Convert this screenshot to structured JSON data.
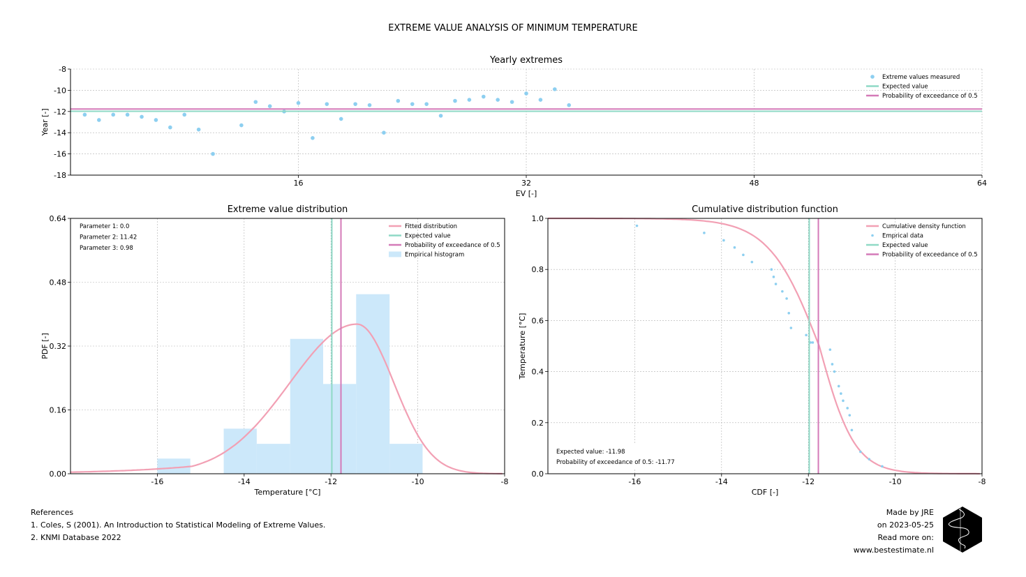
{
  "page": {
    "title": "EXTREME VALUE ANALYSIS OF MINIMUM TEMPERATURE",
    "references": {
      "heading": "References",
      "items": [
        "1. Coles, S (2001). An Introduction to Statistical Modeling of Extreme Values.",
        "2. KNMI Database 2022"
      ]
    },
    "credits": {
      "made_by": "Made by JRE",
      "date": "on 2023-05-25",
      "read_more": "Read more on:",
      "url": "www.bestestimate.nl"
    }
  },
  "colors": {
    "scatter": "#8dcff0",
    "expected": "#8fd9c6",
    "exceedance": "#d47ab8",
    "fit": "#f2a0b4",
    "hist": "#cce8fa",
    "grid": "#b0b0b0"
  },
  "chart_data": [
    {
      "id": "yearly",
      "type": "scatter",
      "title": "Yearly extremes",
      "xlabel": "EV [-]",
      "ylabel": "Year [-]",
      "xlim": [
        0,
        64
      ],
      "ylim": [
        -18,
        -8
      ],
      "xticks": [
        16,
        32,
        48,
        64
      ],
      "yticks": [
        -8,
        -10,
        -12,
        -14,
        -16,
        -18
      ],
      "grid": true,
      "legend_position": "top-right",
      "legend": [
        "Extreme values measured",
        "Expected value",
        "Probability of exceedance of 0.5"
      ],
      "series": [
        {
          "name": "Extreme values measured",
          "x": [
            1,
            2,
            3,
            4,
            5,
            6,
            7,
            8,
            9,
            10,
            12,
            13,
            14,
            15,
            16,
            17,
            18,
            19,
            20,
            21,
            22,
            23,
            24,
            25,
            26,
            27,
            28,
            29,
            30,
            31,
            32,
            33,
            34,
            35
          ],
          "y": [
            -12.3,
            -12.8,
            -12.3,
            -12.3,
            -12.5,
            -12.8,
            -13.5,
            -12.3,
            -13.7,
            -16.0,
            -13.3,
            -11.1,
            -11.5,
            -12.0,
            -11.2,
            -14.5,
            -11.3,
            -12.7,
            -11.3,
            -11.4,
            -14.0,
            -11.0,
            -11.3,
            -11.3,
            -12.4,
            -11.0,
            -10.9,
            -10.6,
            -10.9,
            -11.1,
            -10.3,
            -10.9,
            -9.9,
            -11.4
          ]
        },
        {
          "name": "Expected value",
          "y": -11.98
        },
        {
          "name": "Probability of exceedance of 0.5",
          "y": -11.77
        }
      ]
    },
    {
      "id": "pdf",
      "type": "line",
      "title": "Extreme value distribution",
      "xlabel": "Temperature [°C]",
      "ylabel": "PDF [-]",
      "xlim": [
        -18,
        -8
      ],
      "ylim": [
        0,
        0.64
      ],
      "xticks": [
        -16,
        -14,
        -12,
        -10,
        -8
      ],
      "yticks": [
        0.0,
        0.16,
        0.32,
        0.48,
        0.64
      ],
      "grid": true,
      "legend_position": "top-right",
      "legend": [
        "Fitted distribution",
        "Expected value",
        "Probability of exceedance of 0.5",
        "Empirical histogram"
      ],
      "annotations": [
        "Parameter 1: 0.0",
        "Parameter 2: 11.42",
        "Parameter 3: 0.98"
      ],
      "histogram": {
        "edges": [
          -16.0,
          -15.24,
          -14.47,
          -13.71,
          -12.94,
          -12.18,
          -11.42,
          -10.65,
          -9.89
        ],
        "values": [
          0.038,
          0.0,
          0.113,
          0.075,
          0.338,
          0.225,
          0.45,
          0.075
        ]
      },
      "fit": {
        "name": "Fitted distribution",
        "distribution": "reversed Weibull",
        "loc": 0.0,
        "scale": 11.42,
        "shape": 0.98
      },
      "vlines": [
        {
          "name": "Expected value",
          "x": -11.98
        },
        {
          "name": "Probability of exceedance of 0.5",
          "x": -11.77
        }
      ]
    },
    {
      "id": "cdf",
      "type": "line",
      "title": "Cumulative distribution function",
      "xlabel": "CDF [-]",
      "ylabel": "Temperature [°C]",
      "xlim": [
        -18,
        -8
      ],
      "ylim": [
        0,
        1.0
      ],
      "xticks": [
        -16,
        -14,
        -12,
        -10,
        -8
      ],
      "yticks": [
        0.0,
        0.2,
        0.4,
        0.6,
        0.8,
        1.0
      ],
      "grid": true,
      "legend_position": "top-right",
      "legend": [
        "Cumulative density function",
        "Emprical data",
        "Expected value",
        "Probability of exceedance of 0.5"
      ],
      "annotations": [
        "Expected value: -11.98",
        "Probability of exceedance of 0.5: -11.77"
      ],
      "empirical": {
        "x": [
          -15.95,
          -14.4,
          -13.95,
          -13.7,
          -13.5,
          -13.3,
          -12.85,
          -12.8,
          -12.75,
          -12.6,
          -12.5,
          -12.45,
          -12.4,
          -12.05,
          -11.95,
          -11.9,
          -11.5,
          -11.45,
          -11.4,
          -11.3,
          -11.25,
          -11.2,
          -11.1,
          -11.05,
          -11.0,
          -10.8,
          -10.6,
          -10.3
        ],
        "y": [
          0.971,
          0.943,
          0.914,
          0.886,
          0.857,
          0.829,
          0.8,
          0.771,
          0.743,
          0.714,
          0.686,
          0.629,
          0.571,
          0.543,
          0.514,
          0.514,
          0.486,
          0.429,
          0.4,
          0.343,
          0.314,
          0.286,
          0.257,
          0.229,
          0.171,
          0.086,
          0.057,
          0.029
        ]
      },
      "vlines": [
        {
          "name": "Expected value",
          "x": -11.98
        },
        {
          "name": "Probability of exceedance of 0.5",
          "x": -11.77
        }
      ]
    }
  ]
}
